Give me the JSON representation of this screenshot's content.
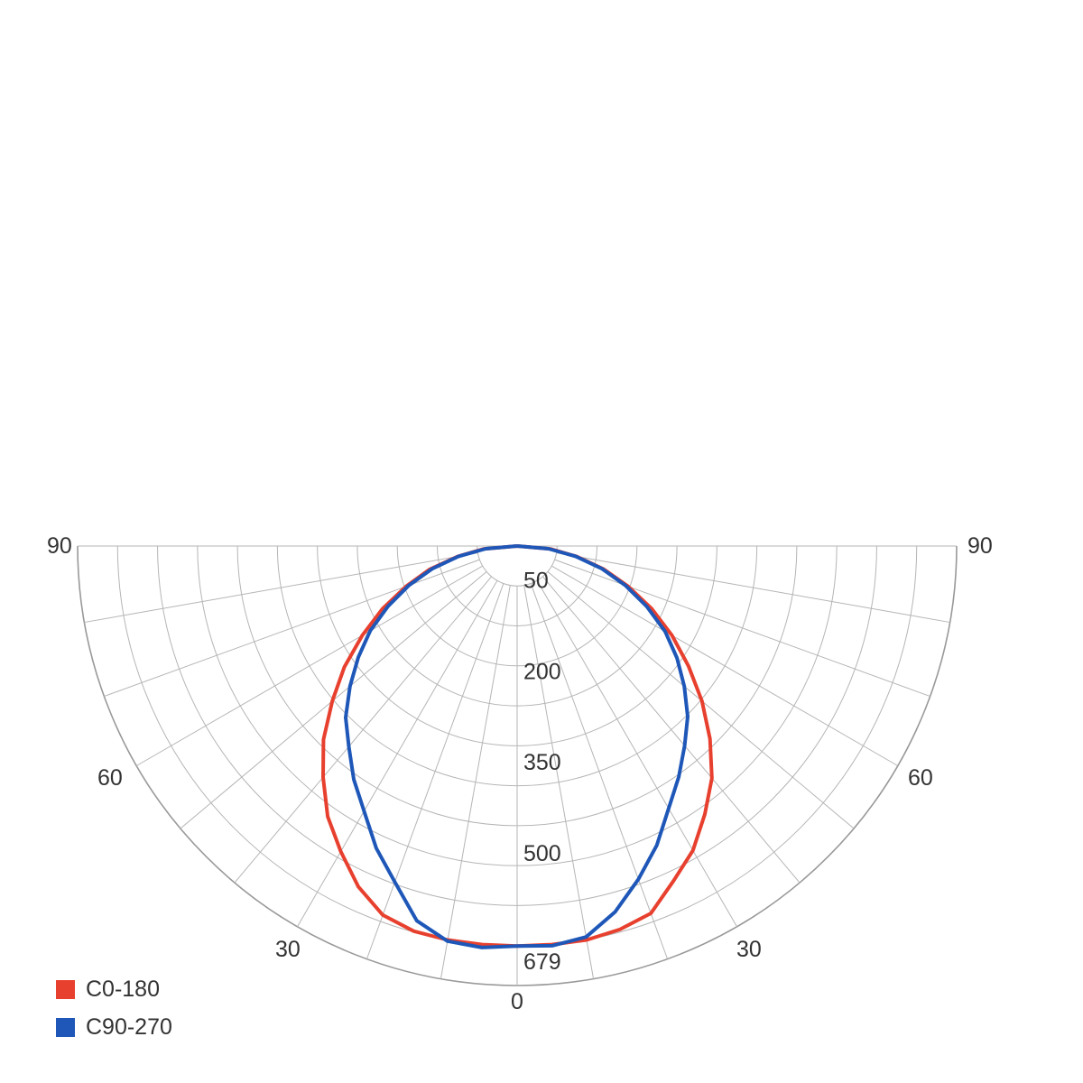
{
  "chart_data": {
    "type": "polar",
    "angle_labels": {
      "left_90": "90",
      "right_90": "90",
      "left_60": "60",
      "right_60": "60",
      "left_30": "30",
      "right_30": "30",
      "bottom_0": "0"
    },
    "angle_ticks_deg": [
      0,
      30,
      60,
      90
    ],
    "radial_max": 679,
    "radial_tick_labels": [
      "50",
      "200",
      "350",
      "500",
      "679"
    ],
    "radial_ticks": [
      50,
      200,
      350,
      500,
      679
    ],
    "rings": 11,
    "spokes_step_deg": 10,
    "series": [
      {
        "name": "C0-180",
        "color": "#e8402e",
        "angles_left": [
          0,
          5,
          10,
          15,
          20,
          25,
          30,
          35,
          40,
          45,
          50,
          55,
          60,
          65,
          70,
          75,
          80,
          85,
          90
        ],
        "values_left": [
          660,
          660,
          660,
          658,
          648,
          620,
          582,
          545,
          498,
          452,
          398,
          348,
          295,
          245,
          195,
          150,
          100,
          55,
          0
        ],
        "angles_right": [
          0,
          5,
          10,
          15,
          20,
          25,
          30,
          35,
          40,
          45,
          50,
          55,
          60,
          65,
          70,
          75,
          80,
          85,
          90
        ],
        "values_right": [
          660,
          660,
          660,
          655,
          645,
          610,
          580,
          540,
          500,
          450,
          398,
          345,
          295,
          245,
          195,
          148,
          100,
          55,
          0
        ]
      },
      {
        "name": "C90-270",
        "color": "#1e57b8",
        "angles_left": [
          0,
          5,
          10,
          15,
          20,
          25,
          30,
          35,
          40,
          45,
          50,
          55,
          60,
          65,
          70,
          75,
          80,
          85,
          90
        ],
        "values_left": [
          660,
          665,
          662,
          640,
          590,
          550,
          505,
          470,
          432,
          400,
          360,
          320,
          280,
          235,
          190,
          145,
          98,
          52,
          0
        ],
        "angles_right": [
          0,
          5,
          10,
          15,
          20,
          25,
          30,
          35,
          40,
          45,
          50,
          55,
          60,
          65,
          70,
          75,
          80,
          85,
          90
        ],
        "values_right": [
          660,
          662,
          655,
          625,
          585,
          545,
          500,
          465,
          430,
          398,
          360,
          322,
          282,
          236,
          190,
          145,
          98,
          52,
          0
        ]
      }
    ]
  },
  "legend": [
    {
      "label": "C0-180",
      "color": "#e8402e"
    },
    {
      "label": "C90-270",
      "color": "#1e57b8"
    }
  ]
}
